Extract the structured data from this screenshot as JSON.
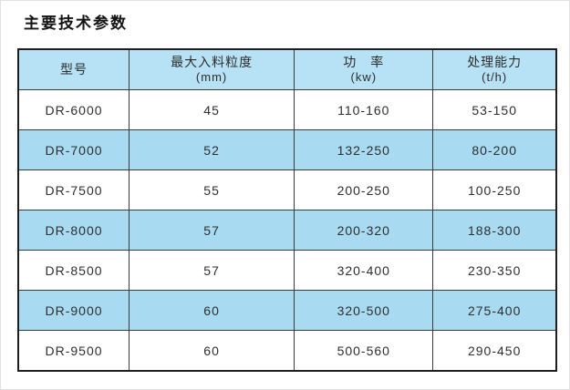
{
  "title": "主要技术参数",
  "table": {
    "header": [
      {
        "label": "型号",
        "unit": ""
      },
      {
        "label": "最大入料粒度",
        "unit": "(mm)"
      },
      {
        "label": "功　率",
        "unit": "(kw)"
      },
      {
        "label": "处理能力",
        "unit": "(t/h)"
      }
    ],
    "rows": [
      {
        "model": "DR-6000",
        "max_feed_size_mm": "45",
        "power_kw": "110-160",
        "capacity_tph": "53-150"
      },
      {
        "model": "DR-7000",
        "max_feed_size_mm": "52",
        "power_kw": "132-250",
        "capacity_tph": "80-200"
      },
      {
        "model": "DR-7500",
        "max_feed_size_mm": "55",
        "power_kw": "200-250",
        "capacity_tph": "100-250"
      },
      {
        "model": "DR-8000",
        "max_feed_size_mm": "57",
        "power_kw": "200-320",
        "capacity_tph": "188-300"
      },
      {
        "model": "DR-8500",
        "max_feed_size_mm": "57",
        "power_kw": "320-400",
        "capacity_tph": "230-350"
      },
      {
        "model": "DR-9000",
        "max_feed_size_mm": "60",
        "power_kw": "320-500",
        "capacity_tph": "275-400"
      },
      {
        "model": "DR-9500",
        "max_feed_size_mm": "60",
        "power_kw": "500-560",
        "capacity_tph": "290-450"
      }
    ]
  },
  "colors": {
    "header_bg": "#b7e1f4",
    "row_alt_bg": "#a8daf2",
    "row_bg": "#ffffff",
    "outer_border": "#1e1e1e",
    "grid_border": "#3b3b3b",
    "text": "#2e2e2e"
  }
}
